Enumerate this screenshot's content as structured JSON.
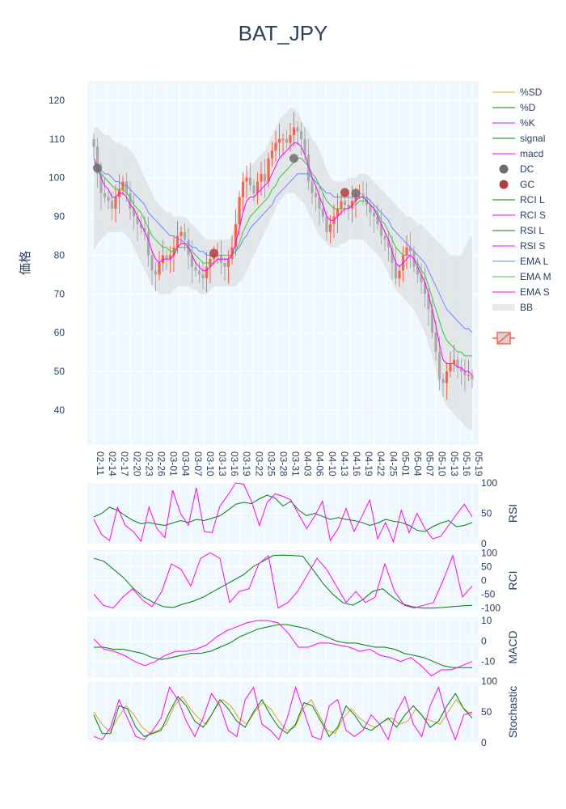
{
  "chart_data": [
    {
      "id": "price",
      "type": "candlestick",
      "title": "BAT_JPY",
      "ylabel": "価格",
      "ylim": [
        31,
        125
      ],
      "yticks": [
        40,
        50,
        60,
        70,
        80,
        90,
        100,
        110,
        120
      ],
      "xticks": [
        "02-11",
        "02-14",
        "02-17",
        "02-20",
        "02-23",
        "02-26",
        "03-01",
        "03-04",
        "03-07",
        "03-10",
        "03-13",
        "03-16",
        "03-19",
        "03-22",
        "03-25",
        "03-28",
        "03-31",
        "04-03",
        "04-06",
        "04-10",
        "04-13",
        "04-16",
        "04-19",
        "04-22",
        "04-25",
        "05-01",
        "05-04",
        "05-07",
        "05-10",
        "05-13",
        "05-16",
        "05-19"
      ],
      "close": [
        108,
        101,
        96,
        95,
        94,
        92,
        95,
        97,
        99,
        96,
        92,
        90,
        88,
        87,
        86,
        80,
        76,
        75,
        78,
        80,
        79,
        80,
        82,
        85,
        86,
        84,
        80,
        77,
        76,
        75,
        74,
        77,
        79,
        80,
        80,
        78,
        77,
        79,
        82,
        88,
        95,
        99,
        100,
        98,
        96,
        99,
        101,
        99,
        105,
        107,
        109,
        110,
        110,
        109,
        111,
        113,
        112,
        110,
        106,
        99,
        96,
        95,
        92,
        90,
        86,
        88,
        90,
        92,
        94,
        93,
        92,
        94,
        96,
        96,
        95,
        93,
        91,
        90,
        88,
        85,
        84,
        82,
        78,
        74,
        76,
        80,
        82,
        81,
        77,
        75,
        73,
        70,
        66,
        60,
        55,
        48,
        47,
        50,
        52,
        53,
        51,
        50,
        49,
        49,
        48
      ],
      "emaS": [
        105,
        103,
        100,
        98,
        97,
        95,
        95,
        96,
        96,
        95,
        93,
        92,
        90,
        88,
        86,
        84,
        81,
        79,
        78,
        79,
        79,
        79,
        80,
        82,
        83,
        83,
        82,
        80,
        78,
        77,
        76,
        76,
        77,
        78,
        79,
        79,
        79,
        79,
        80,
        83,
        87,
        91,
        94,
        95,
        95,
        96,
        97,
        98,
        99,
        101,
        103,
        105,
        106,
        107,
        108,
        109,
        109,
        108,
        106,
        103,
        100,
        98,
        95,
        93,
        90,
        89,
        89,
        90,
        91,
        92,
        92,
        93,
        94,
        95,
        95,
        94,
        93,
        92,
        90,
        88,
        86,
        84,
        81,
        78,
        77,
        78,
        79,
        80,
        79,
        77,
        75,
        73,
        70,
        66,
        62,
        57,
        53,
        52,
        52,
        52,
        51,
        51,
        50,
        50,
        49
      ],
      "emaM": [
        104,
        103,
        101,
        100,
        99,
        98,
        97,
        97,
        97,
        96,
        95,
        93,
        92,
        91,
        89,
        87,
        85,
        84,
        83,
        82,
        82,
        81,
        81,
        82,
        82,
        82,
        82,
        81,
        80,
        79,
        78,
        78,
        78,
        78,
        79,
        79,
        79,
        79,
        80,
        81,
        83,
        86,
        88,
        90,
        91,
        92,
        93,
        94,
        95,
        97,
        98,
        100,
        101,
        102,
        103,
        104,
        105,
        105,
        104,
        103,
        101,
        100,
        98,
        96,
        94,
        93,
        92,
        92,
        92,
        92,
        92,
        93,
        93,
        94,
        94,
        94,
        93,
        92,
        91,
        89,
        88,
        86,
        84,
        82,
        81,
        80,
        80,
        80,
        79,
        78,
        76,
        75,
        72,
        69,
        66,
        63,
        60,
        58,
        57,
        56,
        55,
        55,
        54,
        54,
        54
      ],
      "emaL": [
        103,
        102,
        102,
        101,
        101,
        100,
        99,
        99,
        98,
        98,
        97,
        96,
        95,
        94,
        93,
        91,
        90,
        89,
        88,
        87,
        86,
        85,
        85,
        84,
        84,
        83,
        83,
        82,
        82,
        81,
        81,
        80,
        80,
        80,
        80,
        80,
        80,
        80,
        80,
        81,
        82,
        84,
        85,
        87,
        88,
        89,
        90,
        91,
        92,
        93,
        95,
        96,
        97,
        98,
        99,
        100,
        101,
        101,
        101,
        101,
        100,
        99,
        98,
        97,
        96,
        96,
        95,
        95,
        95,
        95,
        95,
        95,
        95,
        95,
        95,
        95,
        94,
        93,
        92,
        91,
        90,
        89,
        87,
        86,
        85,
        84,
        83,
        82,
        81,
        80,
        79,
        78,
        76,
        74,
        72,
        70,
        68,
        66,
        65,
        64,
        63,
        62,
        61,
        61,
        60
      ],
      "bbUpper": [
        113,
        113,
        112,
        111,
        111,
        110,
        109,
        109,
        108,
        108,
        107,
        106,
        104,
        102,
        100,
        98,
        96,
        94,
        93,
        92,
        91,
        91,
        90,
        90,
        90,
        90,
        89,
        88,
        87,
        86,
        85,
        84,
        84,
        84,
        84,
        84,
        84,
        84,
        85,
        89,
        94,
        98,
        101,
        103,
        104,
        105,
        106,
        107,
        109,
        111,
        113,
        115,
        116,
        117,
        118,
        118,
        117,
        115,
        113,
        112,
        110,
        109,
        107,
        105,
        102,
        100,
        99,
        99,
        99,
        99,
        100,
        100,
        100,
        101,
        101,
        101,
        100,
        99,
        98,
        97,
        96,
        95,
        94,
        93,
        92,
        91,
        90,
        90,
        89,
        88,
        88,
        87,
        86,
        85,
        84,
        83,
        82,
        81,
        80,
        80,
        80,
        80,
        82,
        84,
        85
      ],
      "bbLower": [
        81,
        83,
        84,
        85,
        86,
        86,
        86,
        86,
        86,
        85,
        84,
        82,
        80,
        78,
        76,
        74,
        72,
        71,
        70,
        70,
        70,
        70,
        71,
        72,
        72,
        72,
        72,
        71,
        71,
        70,
        70,
        70,
        71,
        72,
        72,
        72,
        72,
        72,
        72,
        72,
        73,
        74,
        76,
        78,
        80,
        82,
        84,
        86,
        88,
        90,
        92,
        94,
        95,
        96,
        96,
        96,
        95,
        94,
        93,
        91,
        89,
        87,
        85,
        84,
        83,
        82,
        82,
        82,
        83,
        83,
        84,
        84,
        84,
        84,
        84,
        83,
        82,
        81,
        80,
        79,
        77,
        75,
        73,
        71,
        70,
        69,
        68,
        67,
        66,
        64,
        62,
        60,
        57,
        54,
        50,
        46,
        43,
        41,
        40,
        39,
        38,
        37,
        36,
        35,
        35
      ],
      "signals": [
        {
          "type": "DC",
          "index": 1,
          "value": 102.5
        },
        {
          "type": "GC",
          "index": 33,
          "value": 80.5
        },
        {
          "type": "DC",
          "index": 55,
          "value": 105
        },
        {
          "type": "GC",
          "index": 69,
          "value": 96.2
        },
        {
          "type": "DC",
          "index": 72,
          "value": 96
        }
      ]
    },
    {
      "id": "rsi",
      "type": "line",
      "ylabel": "RSI",
      "ylim": [
        0,
        100
      ],
      "yticks": [
        0,
        50,
        100
      ],
      "series": [
        {
          "name": "RSI L",
          "color": "#008000",
          "values": [
            44,
            50,
            60,
            55,
            46,
            38,
            33,
            35,
            32,
            30,
            34,
            38,
            35,
            40,
            38,
            42,
            46,
            55,
            65,
            68,
            66,
            74,
            80,
            75,
            62,
            70,
            55,
            46,
            50,
            45,
            40,
            43,
            40,
            38,
            35,
            30,
            34,
            40,
            37,
            35,
            30,
            22,
            20,
            28,
            34,
            38,
            28,
            30,
            35
          ]
        },
        {
          "name": "RSI S",
          "color": "#ff00ff",
          "values": [
            40,
            15,
            5,
            60,
            30,
            20,
            4,
            60,
            25,
            10,
            88,
            50,
            30,
            92,
            20,
            18,
            62,
            80,
            100,
            98,
            70,
            30,
            68,
            82,
            78,
            72,
            48,
            25,
            45,
            70,
            5,
            25,
            58,
            20,
            45,
            72,
            8,
            35,
            3,
            55,
            18,
            50,
            25,
            8,
            12,
            30,
            48,
            65,
            44
          ]
        }
      ]
    },
    {
      "id": "rci",
      "type": "line",
      "ylabel": "RCI",
      "ylim": [
        -110,
        110
      ],
      "yticks": [
        -100,
        -50,
        0,
        50,
        100
      ],
      "series": [
        {
          "name": "RCI L",
          "color": "#008000",
          "values": [
            80,
            70,
            40,
            10,
            -30,
            -60,
            -80,
            -95,
            -98,
            -85,
            -75,
            -60,
            -40,
            -20,
            0,
            20,
            50,
            70,
            90,
            92,
            90,
            88,
            40,
            -10,
            -50,
            -80,
            -90,
            -70,
            -40,
            -30,
            -60,
            -85,
            -95,
            -100,
            -100,
            -98,
            -95,
            -92,
            -90
          ]
        },
        {
          "name": "RCI S",
          "color": "#ff00ff",
          "values": [
            -50,
            -90,
            -100,
            -60,
            -30,
            -70,
            -95,
            -40,
            60,
            40,
            -20,
            80,
            100,
            80,
            -80,
            -40,
            -30,
            60,
            90,
            -100,
            -80,
            -40,
            20,
            80,
            40,
            -20,
            -80,
            -40,
            -80,
            -60,
            60,
            -40,
            -90,
            -100,
            -90,
            -80,
            0,
            90,
            -60,
            -20
          ]
        }
      ]
    },
    {
      "id": "macd",
      "type": "line",
      "ylabel": "MACD",
      "ylim": [
        -18,
        12
      ],
      "yticks": [
        -10,
        0,
        10
      ],
      "series": [
        {
          "name": "signal",
          "color": "#008000",
          "values": [
            -3,
            -3,
            -4,
            -4,
            -5,
            -6,
            -8,
            -9,
            -8,
            -7,
            -6,
            -6,
            -5,
            -3,
            -1,
            2,
            4,
            6,
            7,
            8,
            8,
            7,
            6,
            4,
            2,
            0,
            -1,
            -1,
            -2,
            -3,
            -3,
            -4,
            -6,
            -7,
            -8,
            -10,
            -12,
            -13,
            -13,
            -13
          ]
        },
        {
          "name": "macd",
          "color": "#ff00ff",
          "values": [
            1,
            -4,
            -5,
            -7,
            -10,
            -12,
            -10,
            -7,
            -5,
            -5,
            -4,
            -2,
            2,
            5,
            7,
            9,
            10,
            10,
            9,
            4,
            -3,
            -3,
            -1,
            -1,
            -2,
            -3,
            -5,
            -4,
            -7,
            -8,
            -10,
            -8,
            -12,
            -17,
            -14,
            -14,
            -12,
            -10
          ]
        }
      ]
    },
    {
      "id": "stoch",
      "type": "line",
      "ylabel": "Stochastic",
      "ylim": [
        0,
        100
      ],
      "yticks": [
        0,
        50,
        100
      ],
      "series": [
        {
          "name": "%SD",
          "color": "#daa520",
          "values": [
            50,
            30,
            18,
            40,
            60,
            45,
            25,
            15,
            20,
            30,
            60,
            75,
            55,
            40,
            30,
            55,
            70,
            60,
            40,
            30,
            50,
            65,
            55,
            35,
            20,
            25,
            55,
            70,
            45,
            20,
            15,
            40,
            55,
            40,
            30,
            25,
            35,
            40,
            30,
            35,
            55,
            40,
            35,
            30,
            50,
            70,
            55,
            45
          ]
        },
        {
          "name": "%D",
          "color": "#008000",
          "values": [
            45,
            15,
            15,
            60,
            55,
            25,
            10,
            15,
            20,
            50,
            75,
            60,
            35,
            25,
            45,
            70,
            55,
            35,
            25,
            50,
            70,
            45,
            25,
            15,
            30,
            65,
            60,
            35,
            10,
            25,
            60,
            45,
            25,
            20,
            30,
            40,
            25,
            45,
            60,
            45,
            25,
            35,
            60,
            80,
            55,
            40
          ]
        },
        {
          "name": "%K",
          "color": "#ff00ff",
          "values": [
            10,
            5,
            25,
            70,
            40,
            10,
            5,
            20,
            40,
            90,
            70,
            35,
            10,
            40,
            80,
            60,
            20,
            10,
            70,
            90,
            30,
            20,
            5,
            40,
            90,
            50,
            10,
            5,
            60,
            70,
            20,
            10,
            20,
            45,
            30,
            5,
            50,
            75,
            30,
            10,
            60,
            90,
            40,
            5,
            45,
            50
          ]
        }
      ]
    }
  ],
  "legend": {
    "items": [
      {
        "label": "%SD",
        "color": "#daa520",
        "kind": "line"
      },
      {
        "label": "%D",
        "color": "#008000",
        "kind": "line"
      },
      {
        "label": "%K",
        "color": "#ff00ff",
        "kind": "line"
      },
      {
        "label": "signal",
        "color": "#008000",
        "kind": "line"
      },
      {
        "label": "macd",
        "color": "#ff00ff",
        "kind": "line"
      },
      {
        "label": "DC",
        "color": "#6e6e6e",
        "kind": "dot"
      },
      {
        "label": "GC",
        "color": "#b04040",
        "kind": "dot"
      },
      {
        "label": "RCI L",
        "color": "#008000",
        "kind": "line"
      },
      {
        "label": "RCI S",
        "color": "#ff00ff",
        "kind": "line"
      },
      {
        "label": "RSI L",
        "color": "#008000",
        "kind": "line"
      },
      {
        "label": "RSI S",
        "color": "#ff00ff",
        "kind": "line"
      },
      {
        "label": "EMA L",
        "color": "#5f8fff",
        "kind": "line"
      },
      {
        "label": "EMA M",
        "color": "#32cd32",
        "kind": "line"
      },
      {
        "label": "EMA S",
        "color": "#ff00ff",
        "kind": "line"
      },
      {
        "label": "BB",
        "color": "#dcdcdc",
        "kind": "band"
      }
    ]
  },
  "colors": {
    "plot_bg": "#f0f8ff",
    "grid": "#ffffff",
    "up": "#ff6347",
    "down": "#a9a9a9",
    "text": "#2a3f5f"
  }
}
